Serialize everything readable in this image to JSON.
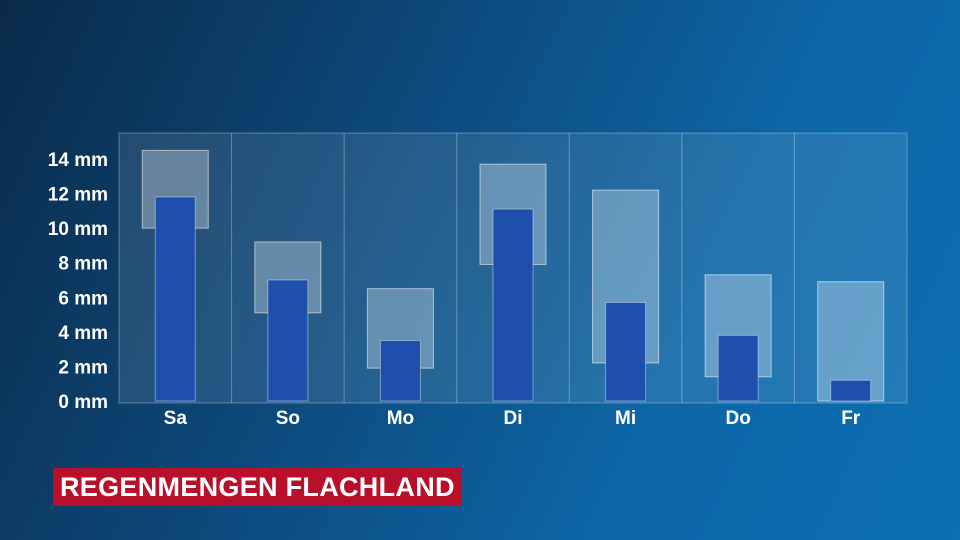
{
  "title": "REGENMENGEN FLACHLAND",
  "colors": {
    "panel": "#ffffff",
    "bar": "#1f4fad",
    "range": "#ffffff",
    "title_bg": "#b8102a"
  },
  "chart_data": {
    "type": "bar",
    "title": "REGENMENGEN FLACHLAND",
    "categories": [
      "Sa",
      "So",
      "Mo",
      "Di",
      "Mi",
      "Do",
      "Fr"
    ],
    "yunit": "mm",
    "ylim": [
      0,
      14
    ],
    "yticks": [
      0,
      2,
      4,
      6,
      8,
      10,
      12,
      14
    ],
    "ytick_labels": [
      "0 mm",
      "2 mm",
      "4 mm",
      "6 mm",
      "8 mm",
      "10 mm",
      "12 mm",
      "14 mm"
    ],
    "values": [
      11.8,
      7.0,
      3.5,
      11.1,
      5.7,
      3.8,
      1.2
    ],
    "ranges": [
      [
        10.0,
        14.5
      ],
      [
        5.1,
        9.2
      ],
      [
        1.9,
        6.5
      ],
      [
        7.9,
        13.7
      ],
      [
        2.2,
        12.2
      ],
      [
        1.4,
        7.3
      ],
      [
        0.0,
        6.9
      ]
    ],
    "grid": true
  }
}
